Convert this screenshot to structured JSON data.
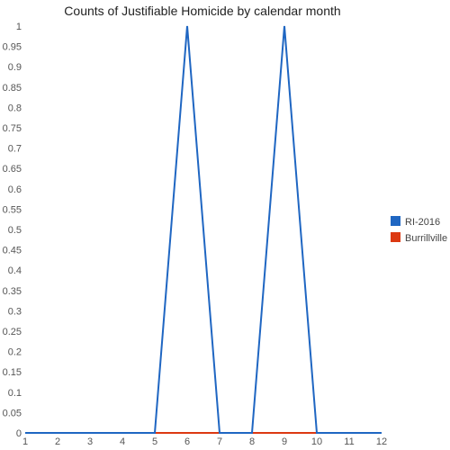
{
  "chart_data": {
    "type": "line",
    "title": "Counts of Justifiable Homicide by calendar month",
    "xlabel": "",
    "ylabel": "",
    "x": [
      1,
      2,
      3,
      4,
      5,
      6,
      7,
      8,
      9,
      10,
      11,
      12
    ],
    "x_tick_labels": [
      "1",
      "2",
      "3",
      "4",
      "5",
      "6",
      "7",
      "8",
      "9",
      "10",
      "11",
      "12"
    ],
    "y_tick_labels": [
      "0",
      "0.05",
      "0.1",
      "0.15",
      "0.2",
      "0.25",
      "0.3",
      "0.35",
      "0.4",
      "0.45",
      "0.5",
      "0.55",
      "0.6",
      "0.65",
      "0.7",
      "0.75",
      "0.8",
      "0.85",
      "0.9",
      "0.95",
      "1"
    ],
    "ylim": [
      0,
      1
    ],
    "xlim": [
      1,
      12
    ],
    "grid": false,
    "legend_position": "right",
    "series": [
      {
        "name": "Burrillville",
        "color": "#dc3912",
        "values": [
          0,
          0,
          0,
          0,
          0,
          0,
          0,
          0,
          0,
          0,
          0,
          0
        ]
      },
      {
        "name": "RI-2016",
        "color": "#1f66c2",
        "values": [
          0,
          0,
          0,
          0,
          0,
          1,
          0,
          0,
          1,
          0,
          0,
          0
        ]
      }
    ],
    "legend": [
      {
        "name": "RI-2016",
        "color": "#1f66c2"
      },
      {
        "name": "Burrillville",
        "color": "#dc3912"
      }
    ]
  }
}
